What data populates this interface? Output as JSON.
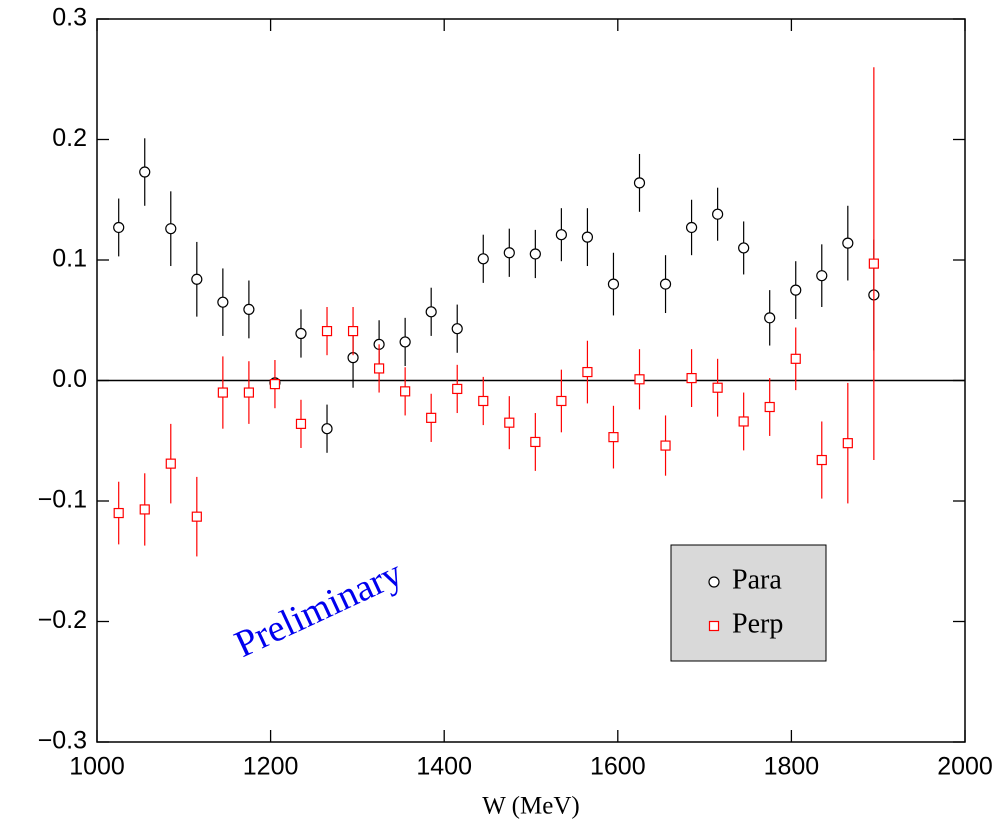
{
  "chart_data": {
    "type": "scatter",
    "xlabel": "W (MeV)",
    "annotation": "Preliminary",
    "xlim": [
      1000,
      2000
    ],
    "xticks": [
      1000,
      1200,
      1400,
      1600,
      1800,
      2000
    ],
    "ylim": [
      -0.3,
      0.3
    ],
    "yticks": [
      {
        "value": -0.3,
        "label": "−0.3"
      },
      {
        "value": -0.2,
        "label": "−0.2"
      },
      {
        "value": -0.1,
        "label": "−0.1"
      },
      {
        "value": 0,
        "label": "0.0"
      },
      0.1,
      0.2,
      0.3
    ],
    "zero_line": true,
    "legend": "lower right",
    "x": [
      1025,
      1055,
      1085,
      1115,
      1145,
      1175,
      1205,
      1235,
      1265,
      1295,
      1325,
      1355,
      1385,
      1415,
      1445,
      1475,
      1505,
      1535,
      1565,
      1595,
      1625,
      1655,
      1685,
      1715,
      1745,
      1775,
      1805,
      1835,
      1865,
      1895
    ],
    "series": [
      {
        "name": "Para",
        "color": "#000000",
        "marker": "circle",
        "values": [
          0.127,
          0.173,
          0.126,
          0.084,
          0.065,
          0.059,
          -0.002,
          0.039,
          -0.04,
          0.019,
          0.03,
          0.032,
          0.057,
          0.043,
          0.101,
          0.106,
          0.105,
          0.121,
          0.119,
          0.08,
          0.164,
          0.08,
          0.127,
          0.138,
          0.11,
          0.052,
          0.075,
          0.087,
          0.114,
          0.071
        ],
        "errors": [
          0.024,
          0.028,
          0.031,
          0.031,
          0.028,
          0.024,
          0.005,
          0.02,
          0.02,
          0.025,
          0.02,
          0.02,
          0.02,
          0.02,
          0.02,
          0.02,
          0.02,
          0.022,
          0.024,
          0.026,
          0.024,
          0.024,
          0.023,
          0.022,
          0.022,
          0.023,
          0.024,
          0.026,
          0.031,
          0.046
        ]
      },
      {
        "name": "Perp",
        "color": "#ff0000",
        "marker": "square",
        "values": [
          -0.11,
          -0.107,
          -0.069,
          -0.113,
          -0.01,
          -0.01,
          -0.003,
          -0.036,
          0.041,
          0.041,
          0.01,
          -0.009,
          -0.031,
          -0.007,
          -0.017,
          -0.035,
          -0.051,
          -0.017,
          0.007,
          -0.047,
          0.001,
          -0.054,
          0.002,
          -0.006,
          -0.034,
          -0.022,
          0.018,
          -0.066,
          -0.052,
          0.097
        ],
        "errors": [
          0.026,
          0.03,
          0.033,
          0.033,
          0.03,
          0.026,
          0.02,
          0.02,
          0.02,
          0.02,
          0.02,
          0.02,
          0.02,
          0.02,
          0.02,
          0.022,
          0.024,
          0.026,
          0.026,
          0.026,
          0.025,
          0.025,
          0.024,
          0.024,
          0.024,
          0.024,
          0.026,
          0.032,
          0.05,
          0.163
        ]
      }
    ]
  }
}
